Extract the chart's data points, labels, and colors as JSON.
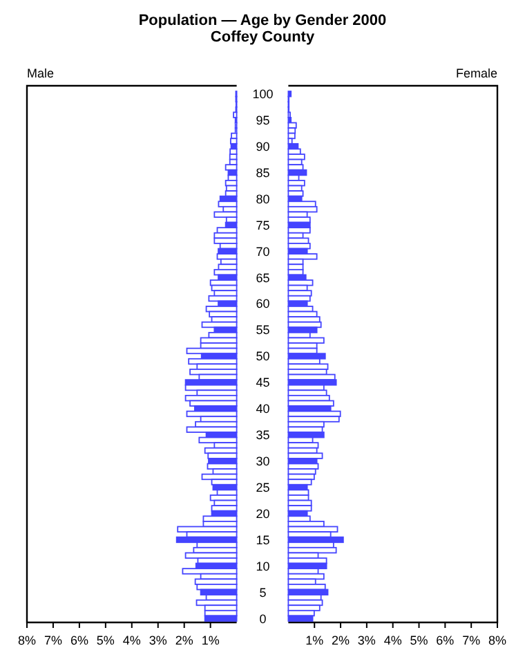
{
  "chart_data": [
    {
      "type": "bar",
      "title": "Population — Age by Gender 2000",
      "subtitle": "Coffey County",
      "annotations": [
        "Male"
      ],
      "orientation": "horizontal",
      "categories": [
        "100",
        null,
        null,
        null,
        null,
        "95",
        null,
        null,
        null,
        null,
        "90",
        null,
        null,
        null,
        null,
        "85",
        null,
        null,
        null,
        null,
        "80",
        null,
        null,
        null,
        null,
        "75",
        null,
        null,
        null,
        null,
        "70",
        null,
        null,
        null,
        null,
        "65",
        null,
        null,
        null,
        null,
        "60",
        null,
        null,
        null,
        null,
        "55",
        null,
        null,
        null,
        null,
        "50",
        null,
        null,
        null,
        null,
        "45",
        null,
        null,
        null,
        null,
        "40",
        null,
        null,
        null,
        null,
        "35",
        null,
        null,
        null,
        null,
        "30",
        null,
        null,
        null,
        null,
        "25",
        null,
        null,
        null,
        null,
        "20",
        null,
        null,
        null,
        null,
        "15",
        null,
        null,
        null,
        null,
        "10",
        null,
        null,
        null,
        null,
        "5",
        null,
        null,
        null,
        null,
        "0"
      ],
      "series": [
        {
          "color": "#4444ff",
          "values": [
            0.03,
            0.03,
            0.02,
            0.03,
            0.12,
            0.05,
            0.05,
            0.05,
            0.2,
            0.23,
            0.21,
            0.25,
            0.26,
            0.26,
            0.42,
            0.32,
            0.32,
            0.42,
            0.39,
            0.42,
            0.63,
            0.69,
            0.51,
            0.85,
            0.39,
            0.42,
            0.74,
            0.85,
            0.85,
            0.63,
            0.7,
            0.74,
            0.6,
            0.69,
            0.85,
            0.7,
            1.0,
            0.95,
            0.85,
            1.06,
            0.7,
            1.16,
            1.04,
            0.95,
            1.32,
            0.85,
            1.06,
            1.37,
            1.37,
            1.9,
            1.34,
            1.83,
            1.51,
            1.78,
            1.43,
            1.95,
            1.95,
            1.51,
            1.95,
            1.78,
            1.6,
            1.9,
            1.37,
            1.57,
            1.9,
            1.16,
            1.43,
            0.85,
            1.21,
            1.09,
            1.07,
            1.11,
            0.9,
            1.32,
            0.95,
            0.9,
            0.74,
            1.0,
            0.85,
            0.95,
            0.95,
            1.27,
            1.27,
            2.25,
            1.9,
            2.29,
            1.51,
            1.64,
            1.95,
            1.48,
            1.55,
            2.06,
            1.37,
            1.58,
            1.51,
            1.37,
            1.16,
            1.53,
            1.21,
            1.21,
            1.21
          ]
        }
      ],
      "xlim": [
        8,
        0
      ],
      "xticks": [
        {
          "value": 1,
          "label": "1%"
        },
        {
          "value": 2,
          "label": "2%"
        },
        {
          "value": 3,
          "label": "3%"
        },
        {
          "value": 4,
          "label": "4%"
        },
        {
          "value": 5,
          "label": "5%"
        },
        {
          "value": 6,
          "label": "6%"
        },
        {
          "value": 7,
          "label": "7%"
        },
        {
          "value": 8,
          "label": "8%"
        }
      ]
    },
    {
      "type": "bar",
      "annotations": [
        "Female"
      ],
      "orientation": "horizontal",
      "tick_labels": "x",
      "categories": [
        "100",
        null,
        null,
        null,
        null,
        "95",
        null,
        null,
        null,
        null,
        "90",
        null,
        null,
        null,
        null,
        "85",
        null,
        null,
        null,
        null,
        "80",
        null,
        null,
        null,
        null,
        "75",
        null,
        null,
        null,
        null,
        "70",
        null,
        null,
        null,
        null,
        "65",
        null,
        null,
        null,
        null,
        "60",
        null,
        null,
        null,
        null,
        "55",
        null,
        null,
        null,
        null,
        "50",
        null,
        null,
        null,
        null,
        "45",
        null,
        null,
        null,
        null,
        "40",
        null,
        null,
        null,
        null,
        "35",
        null,
        null,
        null,
        null,
        "30",
        null,
        null,
        null,
        null,
        "25",
        null,
        null,
        null,
        null,
        "20",
        null,
        null,
        null,
        null,
        "15",
        null,
        null,
        null,
        null,
        "10",
        null,
        null,
        null,
        null,
        "5",
        null,
        null,
        null,
        null,
        "0"
      ],
      "series": [
        {
          "color": "#4444ff",
          "values": [
            0.1,
            0.02,
            0.02,
            0.02,
            0.07,
            0.1,
            0.3,
            0.26,
            0.25,
            0.14,
            0.37,
            0.46,
            0.62,
            0.51,
            0.56,
            0.69,
            0.4,
            0.62,
            0.51,
            0.56,
            0.51,
            1.04,
            1.09,
            0.72,
            0.83,
            0.83,
            0.83,
            0.56,
            0.77,
            0.83,
            0.72,
            1.09,
            0.56,
            0.56,
            0.56,
            0.67,
            0.93,
            0.72,
            0.88,
            0.83,
            0.72,
            0.93,
            1.09,
            1.2,
            1.25,
            1.09,
            0.83,
            1.36,
            1.09,
            1.09,
            1.41,
            1.2,
            1.51,
            1.46,
            1.78,
            1.83,
            1.36,
            1.46,
            1.57,
            1.73,
            1.62,
            1.99,
            1.94,
            1.36,
            1.3,
            1.36,
            0.93,
            1.14,
            1.09,
            1.3,
            1.09,
            1.14,
            1.04,
            0.99,
            0.88,
            0.72,
            0.77,
            0.77,
            0.88,
            0.88,
            0.72,
            0.83,
            1.36,
            1.88,
            1.62,
            2.1,
            1.73,
            1.83,
            1.14,
            1.46,
            1.46,
            1.14,
            1.36,
            1.04,
            1.41,
            1.51,
            1.25,
            1.3,
            1.2,
            0.99,
            0.93
          ]
        }
      ],
      "xlim": [
        0,
        8
      ],
      "xticks": [
        {
          "value": 1,
          "label": "1%"
        },
        {
          "value": 2,
          "label": "2%"
        },
        {
          "value": 3,
          "label": "3%"
        },
        {
          "value": 4,
          "label": "4%"
        },
        {
          "value": 5,
          "label": "5%"
        },
        {
          "value": 6,
          "label": "6%"
        },
        {
          "value": 7,
          "label": "7%"
        },
        {
          "value": 8,
          "label": "8%"
        }
      ]
    }
  ]
}
